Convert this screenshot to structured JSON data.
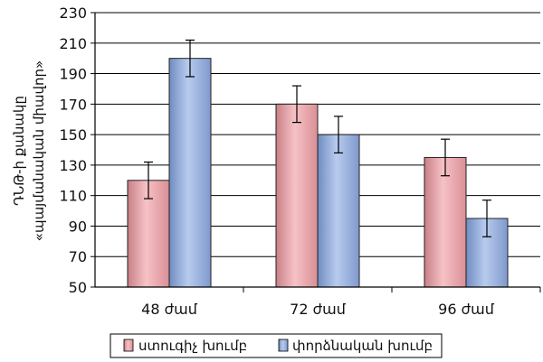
{
  "chart_data": {
    "type": "bar",
    "categories": [
      "48 ժամ",
      "72 ժամ",
      "96 ժամ"
    ],
    "series": [
      {
        "name": "ստուգիչ խումբ",
        "values": [
          120,
          170,
          135
        ],
        "errors": [
          12,
          12,
          12
        ],
        "color": "#e9a6ab"
      },
      {
        "name": "փորձնական խումբ",
        "values": [
          200,
          150,
          95
        ],
        "errors": [
          12,
          12,
          12
        ],
        "color": "#93acd8"
      }
    ],
    "title": "",
    "ylabel_line1": "ԴՆԹ-ի քանակը",
    "ylabel_line2": "«պայմանական միավոր»",
    "ylim": [
      50,
      230
    ],
    "yticks": [
      50,
      70,
      90,
      110,
      130,
      150,
      170,
      190,
      210,
      230
    ],
    "grid": true,
    "legend_position": "bottom"
  }
}
